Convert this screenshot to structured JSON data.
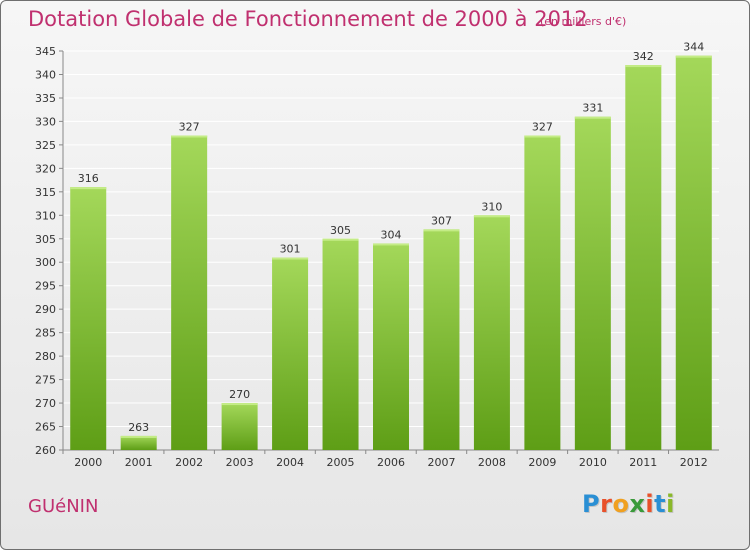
{
  "header": {
    "title": "Dotation Globale de Fonctionnement de 2000 à 2012",
    "subtitle": "(en milliers d'€)"
  },
  "footer": {
    "commune": "GUéNIN",
    "logo": {
      "letters": [
        "P",
        "r",
        "o",
        "x",
        "i",
        "t",
        "i"
      ],
      "colors": [
        "#2a8fd4",
        "#e8502a",
        "#f0a020",
        "#3a9a3a",
        "#e8502a",
        "#2a8fd4",
        "#8ab82a"
      ]
    }
  },
  "colors": {
    "bar_top": "#a4d85a",
    "bar_bottom": "#5e9e16",
    "grid": "#ffffff",
    "text_accent": "#c0306f"
  },
  "chart_data": {
    "type": "bar",
    "title": "Dotation Globale de Fonctionnement de 2000 à 2012",
    "subtitle": "(en milliers d'€)",
    "xlabel": "",
    "ylabel": "",
    "categories": [
      "2000",
      "2001",
      "2002",
      "2003",
      "2004",
      "2005",
      "2006",
      "2007",
      "2008",
      "2009",
      "2010",
      "2011",
      "2012"
    ],
    "values": [
      316,
      263,
      327,
      270,
      301,
      305,
      304,
      307,
      310,
      327,
      331,
      342,
      344
    ],
    "ylim": [
      260,
      345
    ],
    "yticks": [
      260,
      265,
      270,
      275,
      280,
      285,
      290,
      295,
      300,
      305,
      310,
      315,
      320,
      325,
      330,
      335,
      340,
      345
    ],
    "grid": true,
    "legend": "none"
  }
}
